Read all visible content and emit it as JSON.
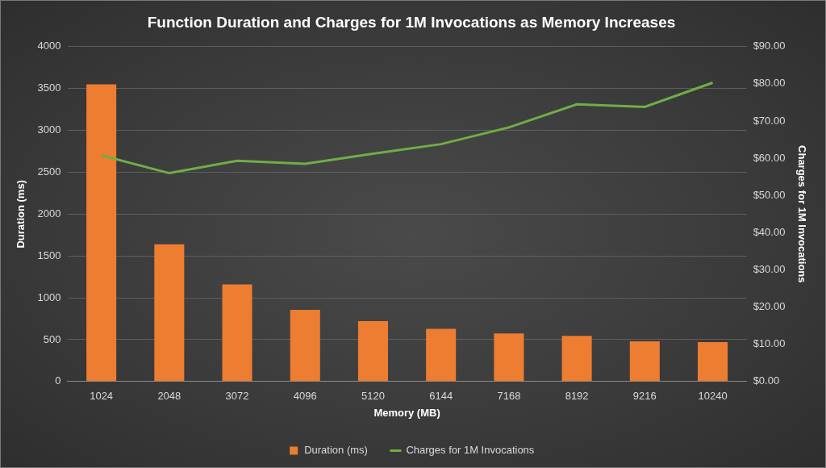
{
  "chart_data": {
    "type": "bar",
    "title": "Function Duration and Charges for 1M Invocations as Memory Increases",
    "x_label": "Memory (MB)",
    "y_label": "Duration (ms)",
    "y2_label": "Charges for 1M Invocations",
    "categories": [
      "1024",
      "2048",
      "3072",
      "4096",
      "5120",
      "6144",
      "7168",
      "8192",
      "9216",
      "10240"
    ],
    "series": [
      {
        "name": "Duration (ms)",
        "type": "bar",
        "color": "#ed7d31",
        "values": [
          3550,
          1640,
          1160,
          855,
          720,
          630,
          575,
          545,
          480,
          470
        ]
      },
      {
        "name": "Charges for 1M Invocations",
        "type": "line",
        "color": "#70ad47",
        "axis": "y2",
        "values": [
          60.8,
          56.0,
          59.3,
          58.5,
          61.2,
          63.8,
          68.3,
          74.5,
          73.8,
          80.3
        ]
      }
    ],
    "ylim": [
      0,
      4000
    ],
    "yticks": [
      0,
      500,
      1000,
      1500,
      2000,
      2500,
      3000,
      3500,
      4000
    ],
    "y2lim": [
      0,
      90
    ],
    "y2ticks": [
      {
        "value": 0,
        "label": "$0.00"
      },
      {
        "value": 10,
        "label": "$10.00"
      },
      {
        "value": 20,
        "label": "$20.00"
      },
      {
        "value": 30,
        "label": "$30.00"
      },
      {
        "value": 40,
        "label": "$40.00"
      },
      {
        "value": 50,
        "label": "$50.00"
      },
      {
        "value": 60,
        "label": "$60.00"
      },
      {
        "value": 70,
        "label": "$70.00"
      },
      {
        "value": 80,
        "label": "$80.00"
      },
      {
        "value": 90,
        "label": "$90.00"
      }
    ],
    "grid": true,
    "legend": "bottom"
  }
}
